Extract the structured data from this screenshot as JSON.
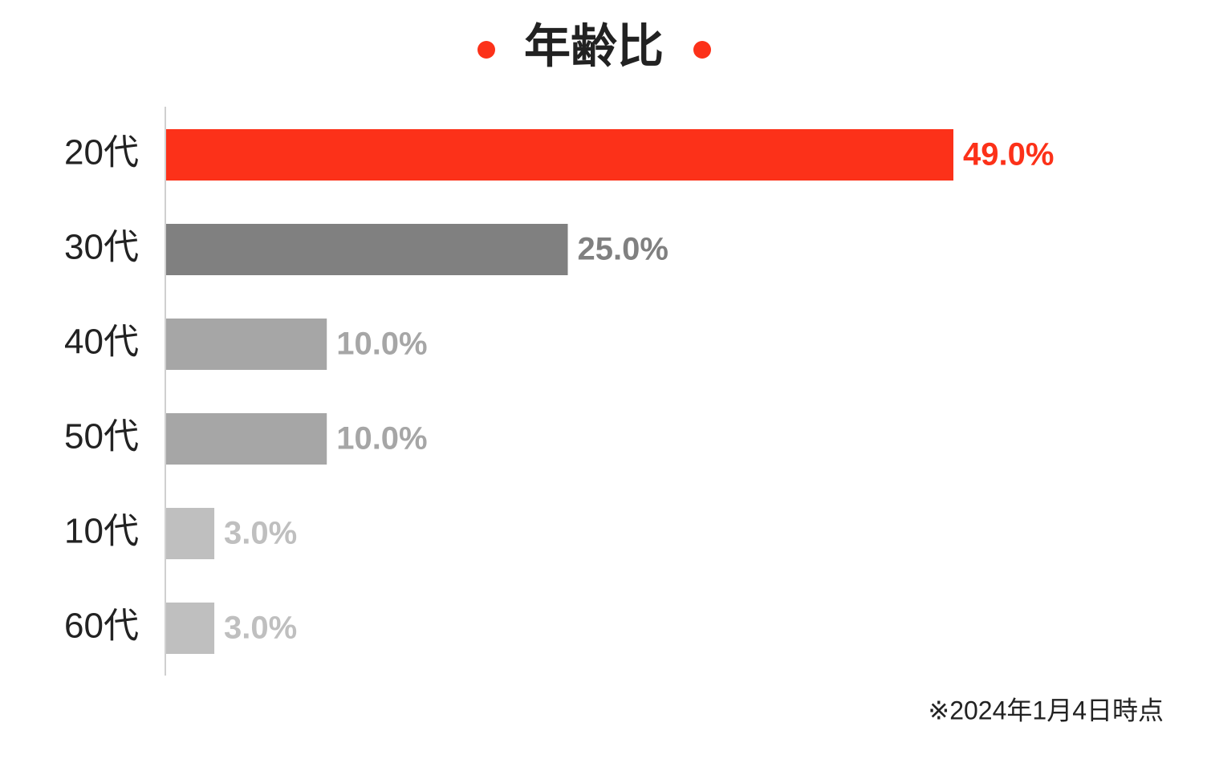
{
  "chart_data": {
    "type": "bar",
    "orientation": "horizontal",
    "title": "年齢比",
    "categories": [
      "20代",
      "30代",
      "40代",
      "50代",
      "10代",
      "60代"
    ],
    "values": [
      49,
      25,
      10,
      10,
      3,
      3
    ],
    "value_labels": [
      "49.0%",
      "25.0%",
      "10.0%",
      "10.0%",
      "3.0%",
      "3.0%"
    ],
    "colors": [
      "#fc3119",
      "#808080",
      "#a6a6a6",
      "#a6a6a6",
      "#bfbfbf",
      "#bfbfbf"
    ],
    "footnote": "※2024年1月4日時点"
  }
}
